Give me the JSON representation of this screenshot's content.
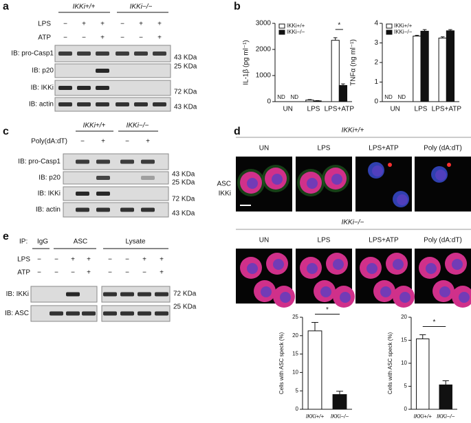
{
  "panels": {
    "a": {
      "label": "a",
      "genotypes": [
        "IKKi+/+",
        "IKKi−/−"
      ],
      "treatments": [
        {
          "name": "LPS",
          "lanes": [
            "−",
            "+",
            "+",
            "−",
            "+",
            "+"
          ]
        },
        {
          "name": "ATP",
          "lanes": [
            "−",
            "−",
            "+",
            "−",
            "−",
            "+"
          ]
        }
      ],
      "blots": [
        {
          "label": "IB: pro-Casp1",
          "size": "43 KDa"
        },
        {
          "label": "IB:  p20",
          "size": "25 KDa"
        },
        {
          "label": "IB: IKKi",
          "size": "72 KDa"
        },
        {
          "label": "IB: actin",
          "size": "43 KDa"
        }
      ]
    },
    "b": {
      "label": "b"
    },
    "c": {
      "label": "c",
      "genotypes": [
        "IKKi+/+",
        "IKKi−/−"
      ],
      "treatments": [
        {
          "name": "Poly(dA:dT)",
          "lanes": [
            "−",
            "+",
            "−",
            "+"
          ]
        }
      ],
      "blots": [
        {
          "label": "IB: pro-Casp1",
          "size": "43 KDa"
        },
        {
          "label": "IB:  p20",
          "size": "25 KDa"
        },
        {
          "label": "IB:  IKKi",
          "size": "72 KDa"
        },
        {
          "label": "IB: actin",
          "size": "43 KDa"
        }
      ]
    },
    "d": {
      "label": "d",
      "genotypes": [
        "IKKi+/+",
        "IKKi−/−"
      ],
      "conditions": [
        "UN",
        "LPS",
        "LPS+ATP",
        "Poly (dA:dT)"
      ],
      "stains": [
        "ASC",
        "IKKi"
      ]
    },
    "e": {
      "label": "e",
      "ip_prefix": "IP:",
      "groups": [
        "IgG",
        "ASC",
        "Lysate"
      ],
      "treatments": [
        {
          "name": "LPS",
          "lanes": [
            "−",
            "−",
            "+",
            "+",
            "−",
            "−",
            "+",
            "+"
          ]
        },
        {
          "name": "ATP",
          "lanes": [
            "−",
            "−",
            "−",
            "+",
            "−",
            "−",
            "−",
            "+"
          ]
        }
      ],
      "blots": [
        {
          "label": "IB: IKKi",
          "size": "72 KDa"
        },
        {
          "label": "IB: ASC",
          "size": "25 KDa"
        }
      ]
    }
  },
  "chart_data": [
    {
      "type": "bar",
      "ylabel": "IL-1β (pg ml⁻¹)",
      "categories": [
        "UN",
        "LPS",
        "LPS+ATP"
      ],
      "series": [
        {
          "name": "IKKi+/+",
          "color": "#ffffff",
          "values": [
            null,
            60,
            2350
          ],
          "errors": [
            null,
            20,
            100
          ],
          "value_labels": [
            "ND",
            null,
            null
          ]
        },
        {
          "name": "IKKi−/−",
          "color": "#111111",
          "values": [
            null,
            30,
            620
          ],
          "errors": [
            null,
            10,
            60
          ],
          "value_labels": [
            "ND",
            null,
            null
          ]
        }
      ],
      "ylim": [
        0,
        3000
      ],
      "yticks": [
        0,
        1000,
        2000,
        3000
      ],
      "significance": "*",
      "legend": "upper-left"
    },
    {
      "type": "bar",
      "ylabel": "TNFα (ng ml⁻¹)",
      "categories": [
        "UN",
        "LPS",
        "LPS+ATP"
      ],
      "series": [
        {
          "name": "IKKi+/+",
          "color": "#ffffff",
          "values": [
            null,
            3.35,
            3.25
          ],
          "errors": [
            null,
            0.04,
            0.06
          ],
          "value_labels": [
            "ND",
            null,
            null
          ]
        },
        {
          "name": "IKKi−/−",
          "color": "#111111",
          "values": [
            null,
            3.6,
            3.62
          ],
          "errors": [
            null,
            0.08,
            0.06
          ],
          "value_labels": [
            "ND",
            null,
            null
          ]
        }
      ],
      "ylim": [
        0,
        4
      ],
      "yticks": [
        0,
        1,
        2,
        3,
        4
      ],
      "legend": "upper-left"
    },
    {
      "type": "bar",
      "ylabel": "Cells with ASC speck (%)",
      "categories": [
        "IKKi+/+",
        "IKKi−/−"
      ],
      "values": [
        21.3,
        4.0
      ],
      "errors": [
        2.3,
        0.9
      ],
      "colors": [
        "#ffffff",
        "#111111"
      ],
      "ylim": [
        0,
        25
      ],
      "yticks": [
        0,
        5,
        10,
        15,
        20,
        25
      ],
      "significance": "*"
    },
    {
      "type": "bar",
      "ylabel": "Cells with ASC speck (%)",
      "categories": [
        "IKKi+/+",
        "IKKi−/−"
      ],
      "values": [
        15.3,
        5.3
      ],
      "errors": [
        0.9,
        0.9
      ],
      "colors": [
        "#ffffff",
        "#111111"
      ],
      "ylim": [
        0,
        20
      ],
      "yticks": [
        0,
        5,
        10,
        15,
        20
      ],
      "significance": "*"
    }
  ]
}
